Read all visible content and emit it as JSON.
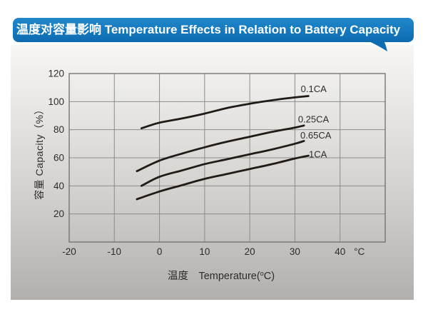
{
  "header": {
    "title": "温度对容量影响 Temperature Effects in Relation to Battery Capacity",
    "banner_color": "#1478be",
    "banner_text_color": "#ffffff"
  },
  "chart_data": {
    "type": "line",
    "title": "温度对容量影响 Temperature Effects in Relation to Battery Capacity",
    "xlabel": {
      "prefix": "温度 Temperature(",
      "sup": "o",
      "suffix": "C)"
    },
    "ylabel": "容量 Capacity（%）",
    "x_unit_suffix": "°C",
    "xlim": [
      -20,
      50
    ],
    "ylim": [
      0,
      120
    ],
    "x_ticks": [
      -20,
      -10,
      0,
      10,
      20,
      30,
      40
    ],
    "y_ticks": [
      120,
      100,
      80,
      60,
      40,
      20
    ],
    "grid": true,
    "legend_position": "labels-at-line-ends",
    "line_color": "#211a15",
    "grid_color": "#8c8c8c",
    "border_color": "#6f6d6b",
    "series": [
      {
        "name": "0.1CA",
        "label_xy": [
          31.3,
          109
        ],
        "points": [
          [
            -4,
            81
          ],
          [
            0,
            85
          ],
          [
            5,
            88
          ],
          [
            10,
            91.5
          ],
          [
            15,
            95.5
          ],
          [
            20,
            98.5
          ],
          [
            25,
            101
          ],
          [
            30,
            103
          ],
          [
            33,
            104
          ]
        ]
      },
      {
        "name": "0.25CA",
        "label_xy": [
          30.7,
          87.5
        ],
        "points": [
          [
            -5,
            50.5
          ],
          [
            0,
            58
          ],
          [
            5,
            63
          ],
          [
            10,
            67.5
          ],
          [
            15,
            71.5
          ],
          [
            20,
            75
          ],
          [
            25,
            78.5
          ],
          [
            30,
            81.5
          ],
          [
            32,
            83
          ]
        ]
      },
      {
        "name": "0.65CA",
        "label_xy": [
          31.2,
          76
        ],
        "points": [
          [
            -4,
            40
          ],
          [
            0,
            46.5
          ],
          [
            5,
            51
          ],
          [
            10,
            55.5
          ],
          [
            15,
            59
          ],
          [
            20,
            62.5
          ],
          [
            25,
            66
          ],
          [
            30,
            70
          ],
          [
            32,
            72
          ]
        ]
      },
      {
        "name": "1CA",
        "label_xy": [
          33.1,
          62.5
        ],
        "points": [
          [
            -5,
            30.5
          ],
          [
            0,
            36
          ],
          [
            5,
            40.5
          ],
          [
            10,
            45
          ],
          [
            15,
            48.5
          ],
          [
            20,
            52
          ],
          [
            25,
            55.5
          ],
          [
            30,
            59.5
          ],
          [
            33,
            61.5
          ]
        ]
      }
    ]
  }
}
